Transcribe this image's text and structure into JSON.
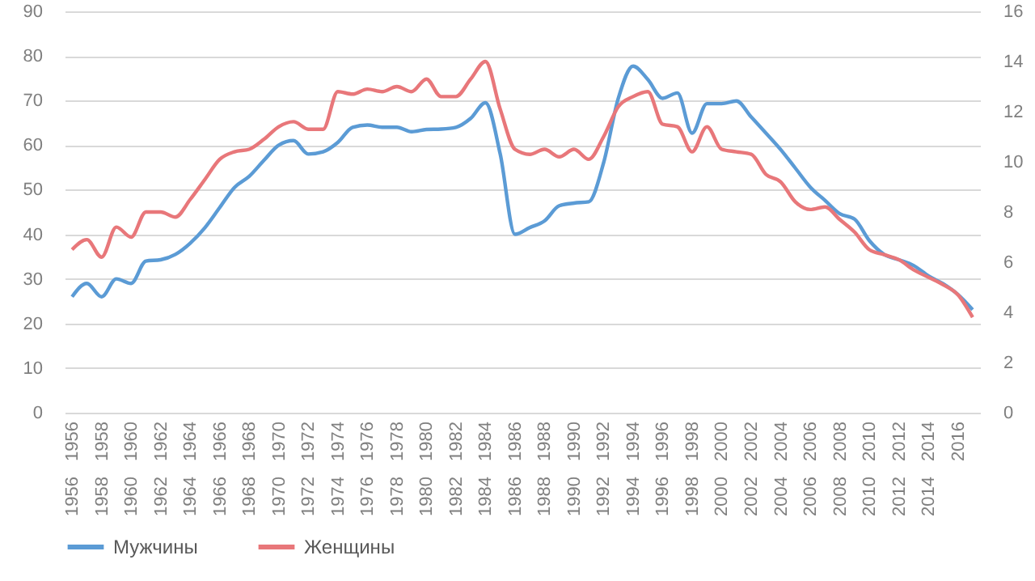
{
  "chart_data": {
    "type": "line",
    "grid": "y",
    "legend": "bottom",
    "marker": "none",
    "line_style": "solid",
    "x": [
      1956,
      1957,
      1958,
      1959,
      1960,
      1961,
      1962,
      1963,
      1964,
      1965,
      1966,
      1967,
      1968,
      1969,
      1970,
      1971,
      1972,
      1973,
      1974,
      1975,
      1976,
      1977,
      1978,
      1979,
      1980,
      1981,
      1982,
      1983,
      1984,
      1985,
      1986,
      1987,
      1988,
      1989,
      1990,
      1991,
      1992,
      1993,
      1994,
      1995,
      1996,
      1997,
      1998,
      1999,
      2000,
      2001,
      2002,
      2003,
      2004,
      2005,
      2006,
      2007,
      2008,
      2009,
      2010,
      2011,
      2012,
      2013,
      2014,
      2015,
      2016,
      2017
    ],
    "xlim": [
      1955.5,
      2017.5
    ],
    "xticks": [
      1956,
      1958,
      1960,
      1962,
      1964,
      1966,
      1968,
      1970,
      1972,
      1974,
      1976,
      1978,
      1980,
      1982,
      1984,
      1986,
      1988,
      1990,
      1992,
      1994,
      1996,
      1998,
      2000,
      2002,
      2004,
      2006,
      2008,
      2010,
      2012,
      2014,
      2016
    ],
    "x2lim": [
      1955.5,
      2017.5
    ],
    "x2ticks": [
      1956,
      1958,
      1960,
      1962,
      1964,
      1966,
      1968,
      1970,
      1972,
      1974,
      1976,
      1978,
      1980,
      1982,
      1984,
      1986,
      1988,
      1990,
      1992,
      1994,
      1996,
      1998,
      2000,
      2002,
      2004,
      2006,
      2008,
      2010,
      2012,
      2014
    ],
    "ylim": [
      0,
      90
    ],
    "yticks": [
      0,
      10,
      20,
      30,
      40,
      50,
      60,
      70,
      80,
      90
    ],
    "y2lim": [
      0,
      16
    ],
    "y2ticks": [
      0,
      2,
      4,
      6,
      8,
      10,
      12,
      14,
      16
    ],
    "series": [
      {
        "name": "Мужчины",
        "color": "#5b9bd5",
        "values": [
          26,
          29,
          26,
          30,
          29,
          34,
          34.3,
          35.5,
          38,
          41.5,
          46,
          50.5,
          53,
          56.6,
          60,
          61,
          58,
          58.5,
          60.6,
          64,
          64.5,
          64,
          64,
          63,
          63.5,
          63.6,
          64,
          66,
          69.5,
          58,
          40,
          41.5,
          43,
          46.4,
          47,
          47.3,
          56,
          70.5,
          77.7,
          74.7,
          70.5,
          71.7,
          62.7,
          69.3,
          69.3,
          69.9,
          66.3,
          62.7,
          59,
          54.8,
          50.6,
          47.6,
          44.6,
          43.4,
          38.6,
          35.5,
          34.3,
          33,
          30.7,
          28.9,
          26.5,
          23.1
        ]
      },
      {
        "name": "Женщины",
        "color": "#e8777a",
        "axis": "y2",
        "values": [
          6.5,
          6.9,
          6.2,
          7.4,
          7.0,
          8.0,
          8.0,
          7.8,
          8.5,
          9.3,
          10.1,
          10.4,
          10.5,
          10.9,
          11.4,
          11.6,
          11.3,
          11.3,
          12.8,
          12.7,
          12.9,
          12.8,
          13.0,
          12.8,
          13.3,
          12.6,
          12.6,
          13.3,
          14.0,
          12.1,
          10.5,
          10.3,
          10.5,
          10.2,
          10.5,
          10.1,
          11.0,
          12.2,
          12.6,
          12.8,
          11.5,
          11.4,
          10.4,
          11.4,
          10.5,
          10.4,
          10.3,
          9.5,
          9.2,
          8.4,
          8.1,
          8.2,
          7.7,
          7.2,
          6.5,
          6.3,
          6.1,
          5.7,
          5.4,
          5.1,
          4.7,
          3.8
        ]
      }
    ]
  }
}
